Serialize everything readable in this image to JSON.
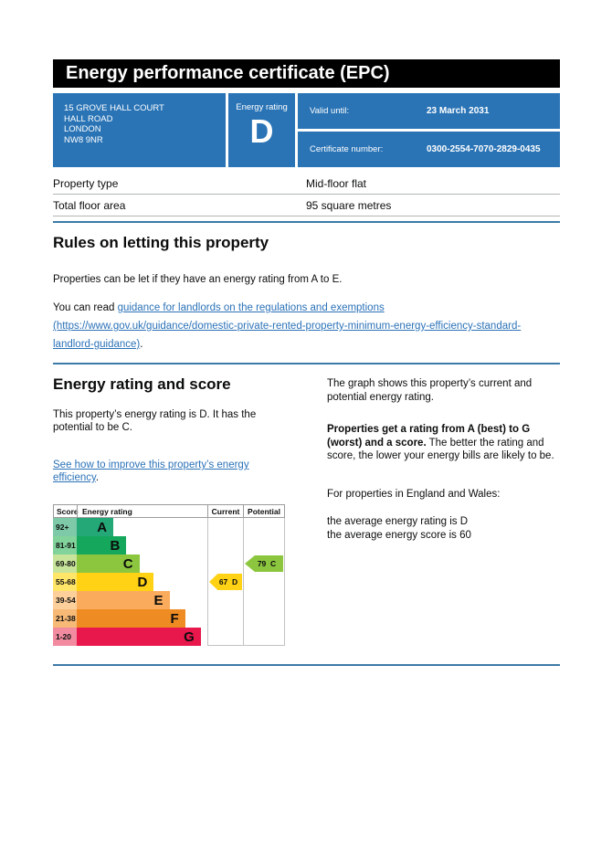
{
  "header": {
    "title": "Energy performance certificate (EPC)"
  },
  "summary": {
    "address_lines": [
      "15 GROVE HALL COURT",
      "HALL ROAD",
      "LONDON",
      "NW8 9NR"
    ],
    "rating_label": "Energy rating",
    "rating_letter": "D",
    "valid_until_label": "Valid until:",
    "valid_until_value": "23 March 2031",
    "certificate_label": "Certificate number:",
    "certificate_value": "0300-2554-7070-2829-0435",
    "panel_color": "#2a74b6"
  },
  "property": {
    "rows": [
      {
        "label": "Property type",
        "value": "Mid-floor flat"
      },
      {
        "label": "Total floor area",
        "value": "95 square metres"
      }
    ]
  },
  "rules": {
    "heading": "Rules on letting this property",
    "intro": "Properties can be let if they have an energy rating from A to E.",
    "read_prefix": "You can read ",
    "link_text": "guidance for landlords on the regulations and exemptions (https://www.gov.uk/guidance/domestic-private-rented-property-minimum-energy-efficiency-standard-landlord-guidance)",
    "read_suffix": "."
  },
  "rating_section": {
    "heading": "Energy rating and score",
    "summary_text": "This property’s energy rating is D. It has the potential to be C.",
    "improve_link": "See how to improve this property’s energy efficiency",
    "improve_suffix": ".",
    "graph_intro": "The graph shows this property’s current and potential energy rating.",
    "explain_bold": "Properties get a rating from A (best) to G (worst) and a score.",
    "explain_rest": " The better the rating and score, the lower your energy bills are likely to be.",
    "averages_intro": "For properties in England and Wales:",
    "average_rating": "the average energy rating is D",
    "average_score": "the average energy score is 60"
  },
  "chart_data": {
    "type": "epc-rating-chart",
    "columns": [
      "Score",
      "Energy rating",
      "Current",
      "Potential"
    ],
    "bands": [
      {
        "score_range": "92+",
        "letter": "A",
        "bar_color": "#24a877",
        "score_bg": "#7ecaa8",
        "width_pct": 28
      },
      {
        "score_range": "81-91",
        "letter": "B",
        "bar_color": "#15a85c",
        "score_bg": "#82d29b",
        "width_pct": 38
      },
      {
        "score_range": "69-80",
        "letter": "C",
        "bar_color": "#8cc63f",
        "score_bg": "#c8e49b",
        "width_pct": 48
      },
      {
        "score_range": "55-68",
        "letter": "D",
        "bar_color": "#ffd215",
        "score_bg": "#ffe668",
        "width_pct": 59
      },
      {
        "score_range": "39-54",
        "letter": "E",
        "bar_color": "#fbab5c",
        "score_bg": "#fdcf9b",
        "width_pct": 71
      },
      {
        "score_range": "21-38",
        "letter": "F",
        "bar_color": "#ee8b23",
        "score_bg": "#f6b976",
        "width_pct": 83
      },
      {
        "score_range": "1-20",
        "letter": "G",
        "bar_color": "#e8174c",
        "score_bg": "#f28ba0",
        "width_pct": 95
      }
    ],
    "current": {
      "label": "Current",
      "score": 67,
      "letter": "D",
      "band_index": 3,
      "color": "#ffd215"
    },
    "potential": {
      "label": "Potential",
      "score": 79,
      "letter": "C",
      "band_index": 2,
      "color": "#8cc63f"
    }
  },
  "colors": {
    "govuk_blue": "#2a74b6",
    "divider_blue": "#3d7aa6",
    "link_blue": "#2b72b8",
    "table_divider": "#b1b4b6",
    "text": "#0b0c0c"
  }
}
